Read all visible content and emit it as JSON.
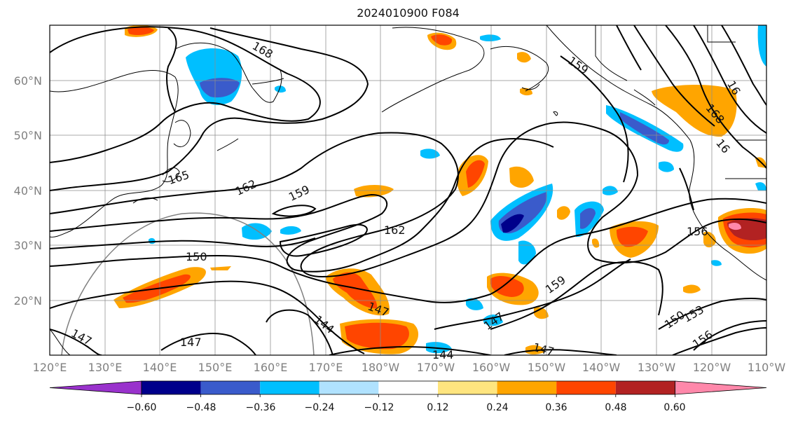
{
  "title": "2024010900 F084",
  "lat_labels": [
    "60°N",
    "50°N",
    "40°N",
    "30°N",
    "20°N"
  ],
  "lon_labels": [
    "120°E",
    "130°E",
    "140°E",
    "150°E",
    "160°E",
    "170°E",
    "180°W",
    "170°W",
    "160°W",
    "150°W",
    "140°W",
    "130°W",
    "120°W",
    "110°W"
  ],
  "contour_labels": [
    "168",
    "159",
    "165",
    "162",
    "159",
    "162",
    "150",
    "147",
    "147",
    "144",
    "144",
    "147",
    "147",
    "147",
    "159",
    "150",
    "153",
    "156",
    "156",
    "168",
    "16",
    "16"
  ],
  "colorbar": {
    "ticks": [
      "−0.60",
      "−0.48",
      "−0.36",
      "−0.24",
      "−0.12",
      "0.12",
      "0.24",
      "0.36",
      "0.48",
      "0.60"
    ],
    "colors": [
      "#9932CC",
      "#00008B",
      "#3A5BCB",
      "#00BFFF",
      "#B0E2FF",
      "#FFFFFF",
      "#FFE57F",
      "#FFA500",
      "#FF4500",
      "#B22222",
      "#FF88AA"
    ]
  },
  "map_colors": {
    "orange": "#FFA500",
    "red": "#FF4500",
    "yellow": "#FFE57F",
    "blue": "#00BFFF",
    "dark_blue": "#3A5BCB",
    "navy": "#00008B",
    "dark_red": "#B22222",
    "pink": "#FF88AA"
  }
}
